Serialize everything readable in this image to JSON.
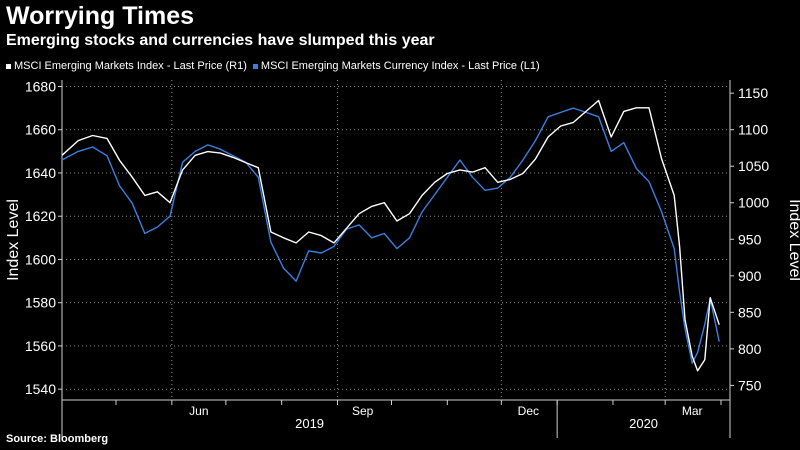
{
  "header": {
    "title": "Worrying Times",
    "subtitle": "Emerging stocks and currencies have slumped this year"
  },
  "source": "Source: Bloomberg",
  "chart_data": {
    "type": "line",
    "legend_position": "top-left",
    "grid": true,
    "x_ticks": [
      "Jun",
      "Sep",
      "Dec",
      "Mar"
    ],
    "x_year_labels": [
      "2019",
      "2020"
    ],
    "left_axis": {
      "label": "Index Level",
      "range": [
        1535,
        1683
      ],
      "ticks": [
        1540,
        1560,
        1580,
        1600,
        1620,
        1640,
        1660,
        1680
      ]
    },
    "right_axis": {
      "label": "Index Level",
      "range": [
        730,
        1168
      ],
      "ticks": [
        750,
        800,
        850,
        900,
        950,
        1000,
        1050,
        1100,
        1150
      ]
    },
    "series": [
      {
        "name": "MSCI Emerging Markets Index - Last Price (R1)",
        "axis": "right",
        "color": "#ffffff",
        "x": [
          "2019-04-01",
          "2019-04-10",
          "2019-04-18",
          "2019-04-26",
          "2019-05-03",
          "2019-05-10",
          "2019-05-17",
          "2019-05-24",
          "2019-05-31",
          "2019-06-07",
          "2019-06-14",
          "2019-06-21",
          "2019-06-28",
          "2019-07-05",
          "2019-07-12",
          "2019-07-19",
          "2019-07-26",
          "2019-08-02",
          "2019-08-09",
          "2019-08-16",
          "2019-08-23",
          "2019-08-30",
          "2019-09-06",
          "2019-09-13",
          "2019-09-20",
          "2019-09-27",
          "2019-10-04",
          "2019-10-11",
          "2019-10-18",
          "2019-10-25",
          "2019-11-01",
          "2019-11-08",
          "2019-11-15",
          "2019-11-22",
          "2019-11-29",
          "2019-12-06",
          "2019-12-13",
          "2019-12-20",
          "2019-12-27",
          "2020-01-03",
          "2020-01-10",
          "2020-01-17",
          "2020-01-24",
          "2020-01-31",
          "2020-02-07",
          "2020-02-14",
          "2020-02-21",
          "2020-02-28",
          "2020-03-06",
          "2020-03-09",
          "2020-03-12",
          "2020-03-16",
          "2020-03-19",
          "2020-03-23",
          "2020-03-26",
          "2020-03-31"
        ],
        "y": [
          1065,
          1085,
          1092,
          1088,
          1058,
          1035,
          1010,
          1015,
          1000,
          1045,
          1065,
          1070,
          1068,
          1062,
          1055,
          1048,
          960,
          952,
          945,
          960,
          955,
          945,
          965,
          985,
          995,
          1000,
          975,
          985,
          1010,
          1028,
          1040,
          1045,
          1042,
          1048,
          1028,
          1032,
          1040,
          1060,
          1090,
          1105,
          1110,
          1125,
          1140,
          1090,
          1125,
          1130,
          1130,
          1060,
          1010,
          940,
          840,
          790,
          770,
          785,
          870,
          833
        ]
      },
      {
        "name": "MSCI Emerging Markets Currency Index - Last Price (L1)",
        "axis": "left",
        "color": "#3a7fe0",
        "x": [
          "2019-04-01",
          "2019-04-10",
          "2019-04-18",
          "2019-04-26",
          "2019-05-03",
          "2019-05-10",
          "2019-05-17",
          "2019-05-24",
          "2019-05-31",
          "2019-06-07",
          "2019-06-14",
          "2019-06-21",
          "2019-06-28",
          "2019-07-05",
          "2019-07-12",
          "2019-07-19",
          "2019-07-26",
          "2019-08-02",
          "2019-08-09",
          "2019-08-16",
          "2019-08-23",
          "2019-08-30",
          "2019-09-06",
          "2019-09-13",
          "2019-09-20",
          "2019-09-27",
          "2019-10-04",
          "2019-10-11",
          "2019-10-18",
          "2019-10-25",
          "2019-11-01",
          "2019-11-08",
          "2019-11-15",
          "2019-11-22",
          "2019-11-29",
          "2019-12-06",
          "2019-12-13",
          "2019-12-20",
          "2019-12-27",
          "2020-01-03",
          "2020-01-10",
          "2020-01-17",
          "2020-01-24",
          "2020-01-31",
          "2020-02-07",
          "2020-02-14",
          "2020-02-21",
          "2020-02-28",
          "2020-03-06",
          "2020-03-09",
          "2020-03-12",
          "2020-03-16",
          "2020-03-19",
          "2020-03-23",
          "2020-03-26",
          "2020-03-31"
        ],
        "y": [
          1646,
          1650,
          1652,
          1648,
          1634,
          1626,
          1612,
          1615,
          1620,
          1645,
          1650,
          1653,
          1651,
          1648,
          1645,
          1638,
          1608,
          1596,
          1590,
          1604,
          1603,
          1606,
          1614,
          1616,
          1610,
          1612,
          1605,
          1610,
          1622,
          1630,
          1638,
          1646,
          1638,
          1632,
          1633,
          1638,
          1646,
          1655,
          1666,
          1668,
          1670,
          1668,
          1666,
          1650,
          1654,
          1642,
          1636,
          1622,
          1605,
          1585,
          1568,
          1552,
          1557,
          1570,
          1582,
          1562
        ]
      }
    ]
  }
}
